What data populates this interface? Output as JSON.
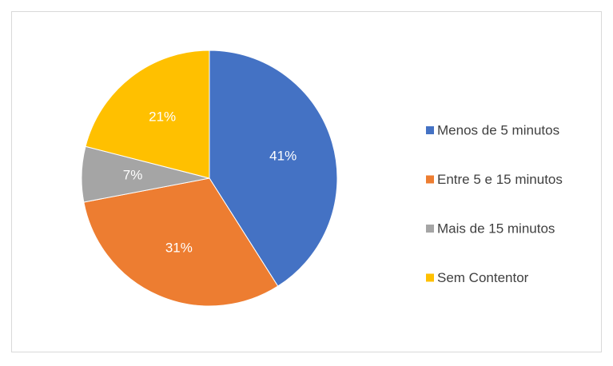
{
  "chart_data": {
    "type": "pie",
    "categories": [
      "Menos de 5 minutos",
      "Entre 5 e 15 minutos",
      "Mais de 15 minutos",
      "Sem Contentor"
    ],
    "values": [
      41,
      31,
      7,
      21
    ],
    "value_labels": [
      "41%",
      "31%",
      "7%",
      "21%"
    ],
    "colors": [
      "#4472c4",
      "#ed7d31",
      "#a5a5a5",
      "#ffc000"
    ],
    "legend": "right"
  }
}
